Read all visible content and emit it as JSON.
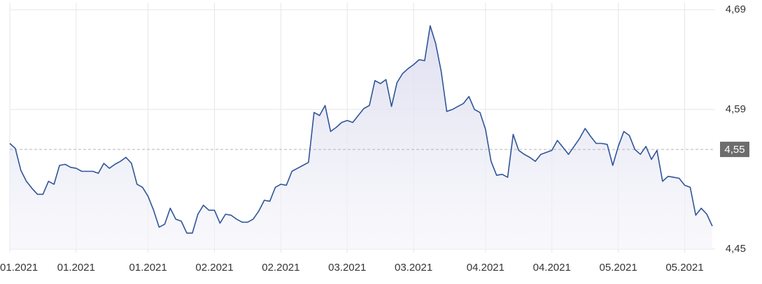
{
  "chart_data": {
    "type": "line",
    "color": "#2f5597",
    "grid": true,
    "values": [
      4.556,
      4.551,
      4.529,
      4.518,
      4.511,
      4.505,
      4.505,
      4.518,
      4.515,
      4.534,
      4.535,
      4.532,
      4.531,
      4.528,
      4.528,
      4.528,
      4.526,
      4.536,
      4.531,
      4.535,
      4.538,
      4.542,
      4.536,
      4.515,
      4.512,
      4.503,
      4.489,
      4.472,
      4.475,
      4.491,
      4.48,
      4.478,
      4.466,
      4.466,
      4.485,
      4.494,
      4.489,
      4.489,
      4.476,
      4.485,
      4.484,
      4.48,
      4.477,
      4.477,
      4.48,
      4.488,
      4.499,
      4.498,
      4.512,
      4.515,
      4.514,
      4.528,
      4.531,
      4.534,
      4.537,
      4.587,
      4.584,
      4.594,
      4.568,
      4.572,
      4.577,
      4.579,
      4.577,
      4.584,
      4.591,
      4.594,
      4.619,
      4.616,
      4.62,
      4.593,
      4.617,
      4.626,
      4.631,
      4.635,
      4.64,
      4.639,
      4.674,
      4.656,
      4.628,
      4.588,
      4.59,
      4.593,
      4.596,
      4.603,
      4.59,
      4.587,
      4.57,
      4.538,
      4.524,
      4.525,
      4.522,
      4.565,
      4.549,
      4.545,
      4.542,
      4.538,
      4.545,
      4.547,
      4.549,
      4.559,
      4.552,
      4.545,
      4.553,
      4.561,
      4.571,
      4.563,
      4.556,
      4.556,
      4.555,
      4.534,
      4.553,
      4.568,
      4.564,
      4.55,
      4.545,
      4.553,
      4.54,
      4.549,
      4.518,
      4.523,
      4.522,
      4.521,
      4.514,
      4.512,
      4.484,
      4.491,
      4.485,
      4.473
    ],
    "ylim": [
      4.45,
      4.69
    ],
    "yticks": [
      {
        "value": 4.45,
        "label": "4,45"
      },
      {
        "value": 4.59,
        "label": "4,59"
      },
      {
        "value": 4.69,
        "label": "4,69"
      }
    ],
    "xticks": [
      {
        "value": 0,
        "label": "01.2021"
      },
      {
        "value": 12,
        "label": "01.2021"
      },
      {
        "value": 25,
        "label": "01.2021"
      },
      {
        "value": 37,
        "label": "02.2021"
      },
      {
        "value": 49,
        "label": "02.2021"
      },
      {
        "value": 61,
        "label": "03.2021"
      },
      {
        "value": 73,
        "label": "03.2021"
      },
      {
        "value": 86,
        "label": "04.2021"
      },
      {
        "value": 98,
        "label": "04.2021"
      },
      {
        "value": 110,
        "label": "05.2021"
      },
      {
        "value": 122,
        "label": "05.2021"
      }
    ],
    "reference_line": {
      "value": 4.55,
      "label": "4,55"
    }
  }
}
